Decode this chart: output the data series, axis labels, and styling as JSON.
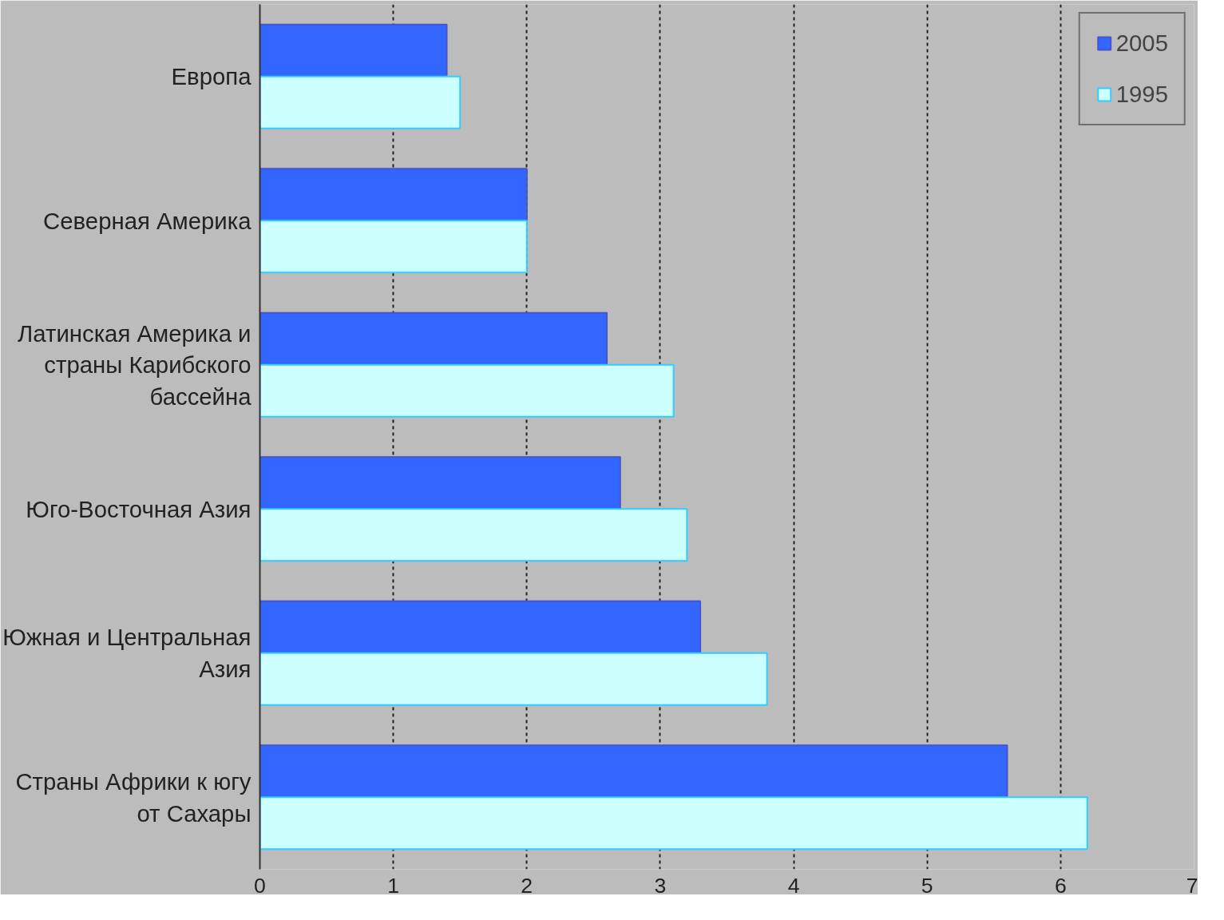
{
  "chart_data": {
    "type": "bar",
    "orientation": "horizontal",
    "categories": [
      "Европа",
      "Северная Америка",
      "Латинская Америка и страны Карибского бассейна",
      "Юго-Восточная Азия",
      "Южная и Центральная Азия",
      "Страны Африки к югу от Сахары"
    ],
    "series": [
      {
        "name": "2005",
        "color": "#3366ff",
        "values": [
          1.4,
          2.0,
          2.6,
          2.7,
          3.3,
          5.6
        ]
      },
      {
        "name": "1995",
        "color": "#ccffff",
        "values": [
          1.5,
          2.0,
          3.1,
          3.2,
          3.8,
          6.2
        ]
      }
    ],
    "xlim": [
      0,
      7
    ],
    "xticks": [
      0,
      1,
      2,
      3,
      4,
      5,
      6,
      7
    ],
    "grid": "x",
    "legend": "top right"
  }
}
